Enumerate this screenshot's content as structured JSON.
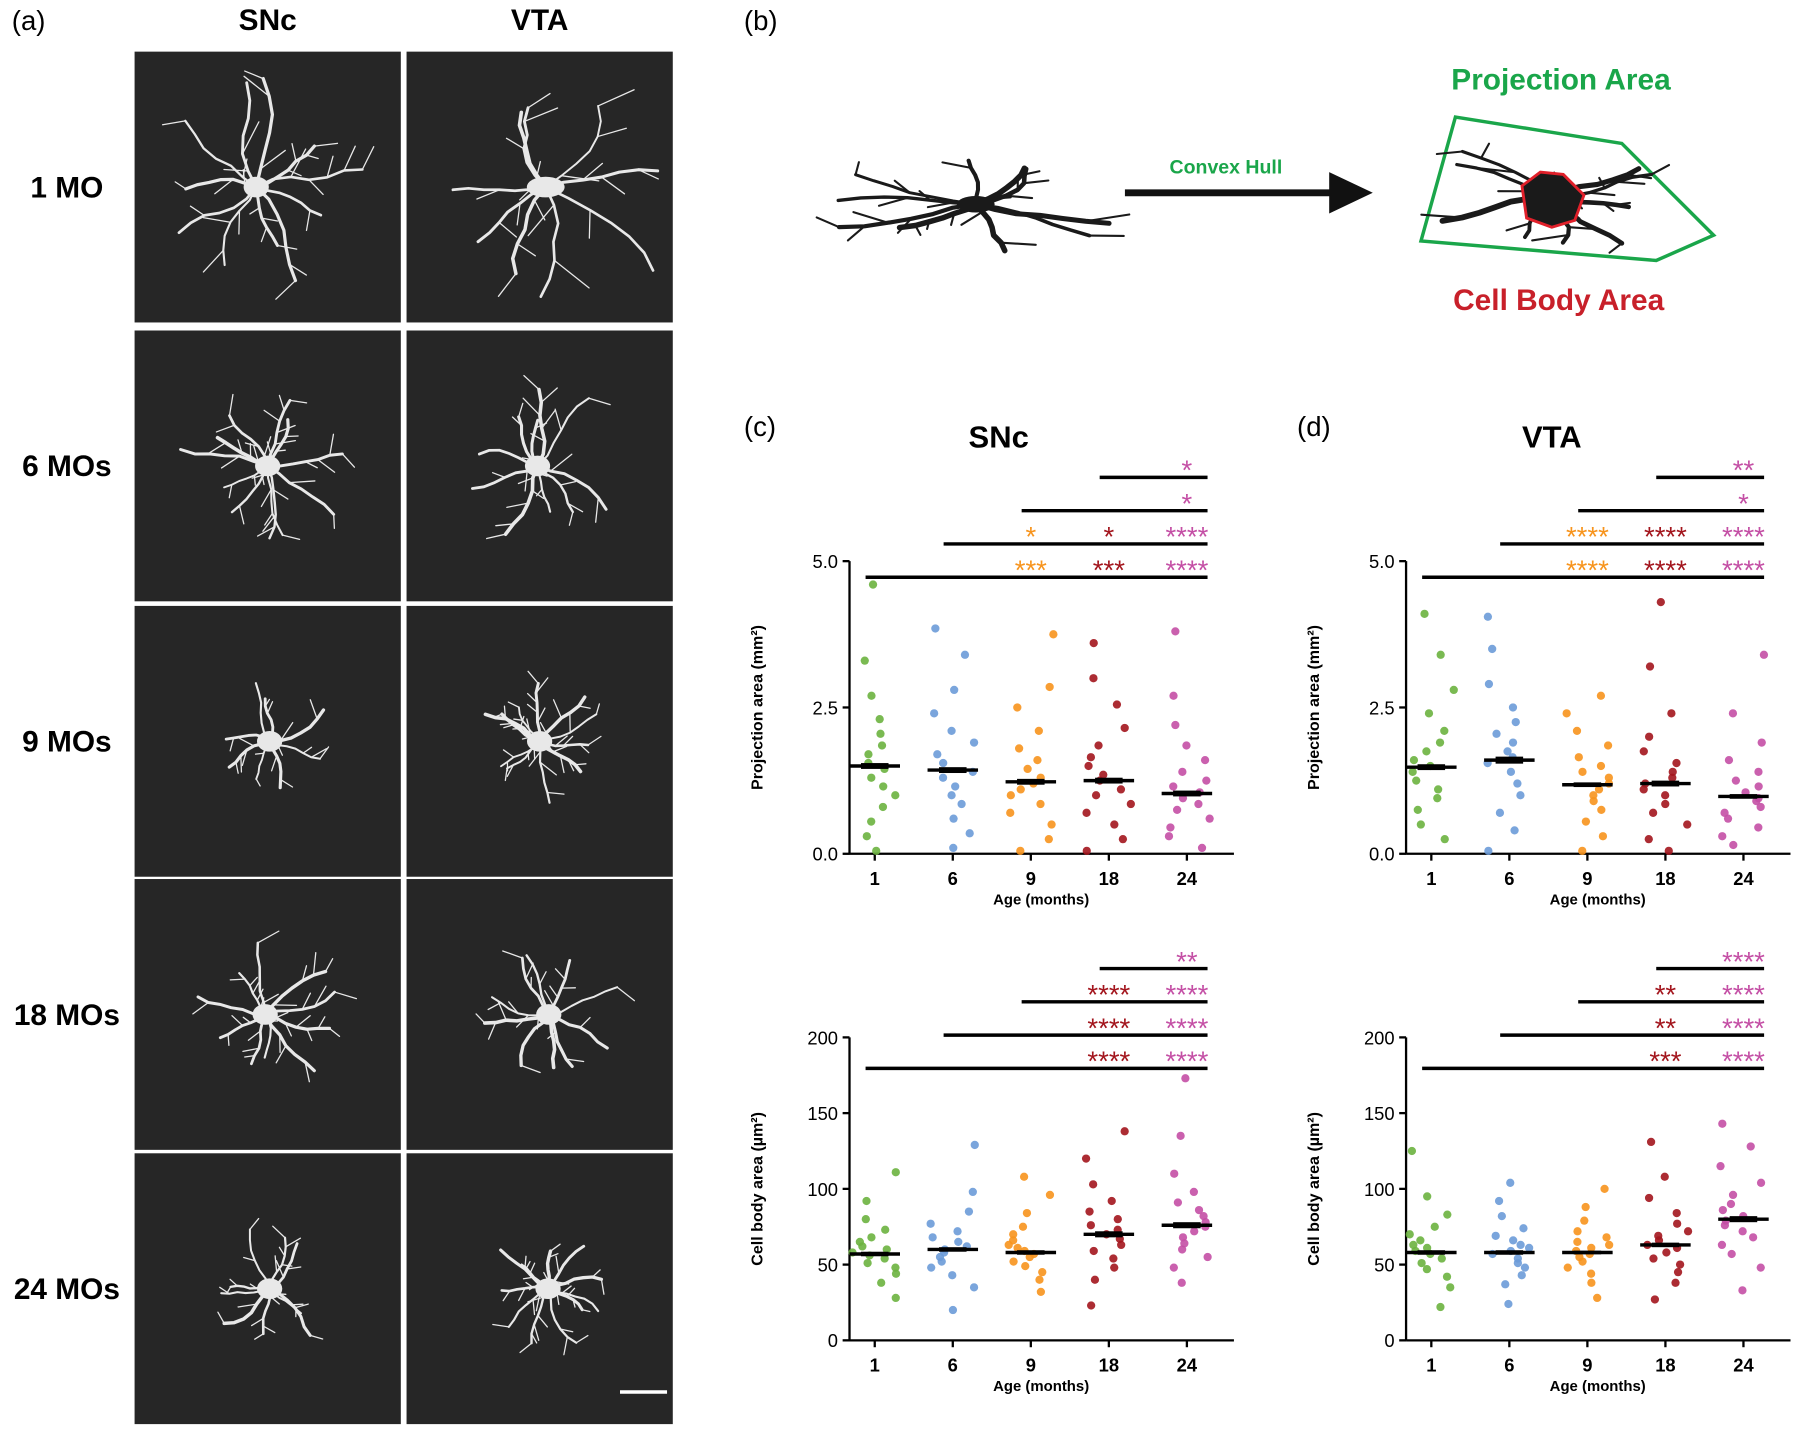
{
  "panel_a": {
    "label": "(a)",
    "columns": [
      "SNc",
      "VTA"
    ],
    "rows": [
      "1 MO",
      "6 MOs",
      "9 MOs",
      "18 MOs",
      "24 MOs"
    ]
  },
  "panel_b": {
    "label": "(b)",
    "arrow_label": "Convex Hull",
    "projection_label": "Projection Area",
    "cell_body_label": "Cell Body Area"
  },
  "chart_data": [
    {
      "type": "beeswarm",
      "panel_label": "(c)",
      "title": "SNc",
      "x_label": "Age (months)",
      "y_label": "Projection area (mm²)",
      "categories": [
        "1",
        "6",
        "9",
        "18",
        "24"
      ],
      "ylim": [
        0,
        5
      ],
      "yticks": [
        {
          "value": 0,
          "label": "0.0"
        },
        {
          "value": 2.5,
          "label": "2.5"
        },
        {
          "value": 5,
          "label": "5.0"
        }
      ],
      "groups": [
        {
          "name": "1",
          "color": "#6cb33f",
          "mean": 1.5,
          "sem": 0.05,
          "values": [
            0.05,
            0.3,
            0.55,
            0.8,
            1.0,
            1.15,
            1.3,
            1.45,
            1.55,
            1.7,
            1.85,
            2.05,
            2.3,
            2.7,
            3.3,
            4.6
          ]
        },
        {
          "name": "6",
          "color": "#6b9bd8",
          "mean": 1.43,
          "sem": 0.05,
          "values": [
            0.1,
            0.35,
            0.6,
            0.85,
            1.0,
            1.15,
            1.3,
            1.4,
            1.55,
            1.7,
            1.9,
            2.1,
            2.4,
            2.8,
            3.4,
            3.85
          ]
        },
        {
          "name": "9",
          "color": "#f7941d",
          "mean": 1.23,
          "sem": 0.05,
          "values": [
            0.05,
            0.25,
            0.5,
            0.7,
            0.85,
            1.0,
            1.1,
            1.2,
            1.3,
            1.45,
            1.6,
            1.8,
            2.1,
            2.5,
            2.85,
            3.75
          ]
        },
        {
          "name": "18",
          "color": "#a3151d",
          "mean": 1.25,
          "sem": 0.05,
          "values": [
            0.05,
            0.25,
            0.5,
            0.7,
            0.85,
            1.0,
            1.1,
            1.25,
            1.35,
            1.5,
            1.65,
            1.85,
            2.15,
            2.55,
            3.0,
            3.6
          ]
        },
        {
          "name": "24",
          "color": "#c44fa5",
          "mean": 1.03,
          "sem": 0.05,
          "values": [
            0.1,
            0.3,
            0.45,
            0.6,
            0.75,
            0.85,
            0.95,
            1.05,
            1.15,
            1.25,
            1.4,
            1.6,
            1.85,
            2.2,
            2.7,
            3.8
          ]
        }
      ],
      "comparisons": [
        {
          "from": "18",
          "to": "24",
          "marks": [
            {
              "at": "24",
              "text": "*",
              "color": "#c44fa5"
            }
          ]
        },
        {
          "from": "9",
          "to": "24",
          "marks": [
            {
              "at": "24",
              "text": "*",
              "color": "#c44fa5"
            }
          ]
        },
        {
          "from": "6",
          "to": "24",
          "marks": [
            {
              "at": "9",
              "text": "*",
              "color": "#f7941d"
            },
            {
              "at": "18",
              "text": "*",
              "color": "#a3151d"
            },
            {
              "at": "24",
              "text": "****",
              "color": "#c44fa5"
            }
          ]
        },
        {
          "from": "1",
          "to": "24",
          "marks": [
            {
              "at": "9",
              "text": "***",
              "color": "#f7941d"
            },
            {
              "at": "18",
              "text": "***",
              "color": "#a3151d"
            },
            {
              "at": "24",
              "text": "****",
              "color": "#c44fa5"
            }
          ]
        }
      ]
    },
    {
      "type": "beeswarm",
      "panel_label": "(d)",
      "title": "VTA",
      "x_label": "Age (months)",
      "y_label": "Projection area (mm²)",
      "categories": [
        "1",
        "6",
        "9",
        "18",
        "24"
      ],
      "ylim": [
        0,
        5
      ],
      "yticks": [
        {
          "value": 0,
          "label": "0.0"
        },
        {
          "value": 2.5,
          "label": "2.5"
        },
        {
          "value": 5,
          "label": "5.0"
        }
      ],
      "groups": [
        {
          "name": "1",
          "color": "#6cb33f",
          "mean": 1.48,
          "sem": 0.05,
          "values": [
            0.25,
            0.5,
            0.75,
            0.95,
            1.1,
            1.25,
            1.4,
            1.5,
            1.6,
            1.75,
            1.9,
            2.1,
            2.4,
            2.8,
            3.4,
            4.1
          ]
        },
        {
          "name": "6",
          "color": "#6b9bd8",
          "mean": 1.6,
          "sem": 0.06,
          "values": [
            0.05,
            0.4,
            0.7,
            1.0,
            1.2,
            1.4,
            1.55,
            1.65,
            1.75,
            1.9,
            2.05,
            2.25,
            2.5,
            2.9,
            3.5,
            4.05
          ]
        },
        {
          "name": "9",
          "color": "#f7941d",
          "mean": 1.18,
          "sem": 0.04,
          "values": [
            0.05,
            0.3,
            0.55,
            0.75,
            0.9,
            1.0,
            1.1,
            1.2,
            1.3,
            1.4,
            1.5,
            1.65,
            1.85,
            2.1,
            2.4,
            2.7
          ]
        },
        {
          "name": "18",
          "color": "#a3151d",
          "mean": 1.2,
          "sem": 0.05,
          "values": [
            0.05,
            0.25,
            0.5,
            0.7,
            0.85,
            1.0,
            1.1,
            1.2,
            1.3,
            1.4,
            1.55,
            1.75,
            2.0,
            2.4,
            3.2,
            4.3
          ]
        },
        {
          "name": "24",
          "color": "#c44fa5",
          "mean": 0.98,
          "sem": 0.04,
          "values": [
            0.15,
            0.3,
            0.45,
            0.6,
            0.7,
            0.8,
            0.9,
            0.95,
            1.05,
            1.15,
            1.25,
            1.4,
            1.6,
            1.9,
            2.4,
            3.4
          ]
        }
      ],
      "comparisons": [
        {
          "from": "18",
          "to": "24",
          "marks": [
            {
              "at": "24",
              "text": "**",
              "color": "#c44fa5"
            }
          ]
        },
        {
          "from": "9",
          "to": "24",
          "marks": [
            {
              "at": "24",
              "text": "*",
              "color": "#c44fa5"
            }
          ]
        },
        {
          "from": "6",
          "to": "24",
          "marks": [
            {
              "at": "9",
              "text": "****",
              "color": "#f7941d"
            },
            {
              "at": "18",
              "text": "****",
              "color": "#a3151d"
            },
            {
              "at": "24",
              "text": "****",
              "color": "#c44fa5"
            }
          ]
        },
        {
          "from": "1",
          "to": "24",
          "marks": [
            {
              "at": "9",
              "text": "****",
              "color": "#f7941d"
            },
            {
              "at": "18",
              "text": "****",
              "color": "#a3151d"
            },
            {
              "at": "24",
              "text": "****",
              "color": "#c44fa5"
            }
          ]
        }
      ]
    },
    {
      "type": "beeswarm",
      "x_label": "Age (months)",
      "y_label": "Cell body area (µm²)",
      "categories": [
        "1",
        "6",
        "9",
        "18",
        "24"
      ],
      "ylim": [
        0,
        200
      ],
      "yticks": [
        0,
        50,
        100,
        150,
        200
      ],
      "groups": [
        {
          "name": "1",
          "color": "#6cb33f",
          "mean": 57,
          "sem": 1.5,
          "values": [
            28,
            38,
            44,
            48,
            51,
            54,
            56,
            58,
            60,
            62,
            65,
            68,
            73,
            80,
            92,
            111
          ]
        },
        {
          "name": "6",
          "color": "#6b9bd8",
          "mean": 60,
          "sem": 1.5,
          "values": [
            20,
            35,
            43,
            48,
            52,
            55,
            58,
            60,
            62,
            65,
            68,
            72,
            77,
            85,
            98,
            129
          ]
        },
        {
          "name": "9",
          "color": "#f7941d",
          "mean": 58,
          "sem": 1.5,
          "values": [
            32,
            40,
            45,
            49,
            52,
            55,
            57,
            59,
            61,
            63,
            66,
            70,
            75,
            84,
            96,
            108
          ]
        },
        {
          "name": "18",
          "color": "#a3151d",
          "mean": 70,
          "sem": 2,
          "values": [
            23,
            40,
            48,
            54,
            59,
            63,
            67,
            70,
            73,
            76,
            80,
            85,
            92,
            103,
            120,
            138
          ]
        },
        {
          "name": "24",
          "color": "#c44fa5",
          "mean": 76,
          "sem": 2,
          "values": [
            38,
            48,
            55,
            60,
            64,
            68,
            72,
            75,
            78,
            82,
            86,
            91,
            98,
            110,
            135,
            173
          ]
        }
      ],
      "comparisons": [
        {
          "from": "18",
          "to": "24",
          "marks": [
            {
              "at": "24",
              "text": "**",
              "color": "#c44fa5"
            }
          ]
        },
        {
          "from": "9",
          "to": "24",
          "marks": [
            {
              "at": "18",
              "text": "****",
              "color": "#a3151d"
            },
            {
              "at": "24",
              "text": "****",
              "color": "#c44fa5"
            }
          ]
        },
        {
          "from": "6",
          "to": "24",
          "marks": [
            {
              "at": "18",
              "text": "****",
              "color": "#a3151d"
            },
            {
              "at": "24",
              "text": "****",
              "color": "#c44fa5"
            }
          ]
        },
        {
          "from": "1",
          "to": "24",
          "marks": [
            {
              "at": "18",
              "text": "****",
              "color": "#a3151d"
            },
            {
              "at": "24",
              "text": "****",
              "color": "#c44fa5"
            }
          ]
        }
      ]
    },
    {
      "type": "beeswarm",
      "x_label": "Age (months)",
      "y_label": "Cell body area (µm²)",
      "categories": [
        "1",
        "6",
        "9",
        "18",
        "24"
      ],
      "ylim": [
        0,
        200
      ],
      "yticks": [
        0,
        50,
        100,
        150,
        200
      ],
      "groups": [
        {
          "name": "1",
          "color": "#6cb33f",
          "mean": 58,
          "sem": 1.5,
          "values": [
            22,
            35,
            42,
            47,
            51,
            54,
            57,
            59,
            61,
            63,
            66,
            70,
            75,
            83,
            95,
            125
          ]
        },
        {
          "name": "6",
          "color": "#6b9bd8",
          "mean": 58,
          "sem": 1.5,
          "values": [
            24,
            37,
            43,
            48,
            51,
            54,
            57,
            59,
            61,
            63,
            66,
            69,
            74,
            82,
            92,
            104
          ]
        },
        {
          "name": "9",
          "color": "#f7941d",
          "mean": 58,
          "sem": 1.2,
          "values": [
            28,
            38,
            44,
            48,
            52,
            55,
            57,
            59,
            61,
            63,
            65,
            68,
            72,
            79,
            88,
            100
          ]
        },
        {
          "name": "18",
          "color": "#a3151d",
          "mean": 63,
          "sem": 1.5,
          "values": [
            27,
            38,
            45,
            50,
            54,
            58,
            61,
            63,
            66,
            69,
            72,
            77,
            84,
            94,
            108,
            131
          ]
        },
        {
          "name": "24",
          "color": "#c44fa5",
          "mean": 80,
          "sem": 2,
          "values": [
            33,
            48,
            57,
            63,
            68,
            72,
            76,
            79,
            82,
            86,
            90,
            96,
            104,
            115,
            128,
            143
          ]
        }
      ],
      "comparisons": [
        {
          "from": "18",
          "to": "24",
          "marks": [
            {
              "at": "24",
              "text": "****",
              "color": "#c44fa5"
            }
          ]
        },
        {
          "from": "9",
          "to": "24",
          "marks": [
            {
              "at": "18",
              "text": "**",
              "color": "#a3151d"
            },
            {
              "at": "24",
              "text": "****",
              "color": "#c44fa5"
            }
          ]
        },
        {
          "from": "6",
          "to": "24",
          "marks": [
            {
              "at": "18",
              "text": "**",
              "color": "#a3151d"
            },
            {
              "at": "24",
              "text": "****",
              "color": "#c44fa5"
            }
          ]
        },
        {
          "from": "1",
          "to": "24",
          "marks": [
            {
              "at": "18",
              "text": "***",
              "color": "#a3151d"
            },
            {
              "at": "24",
              "text": "****",
              "color": "#c44fa5"
            }
          ]
        }
      ]
    }
  ]
}
